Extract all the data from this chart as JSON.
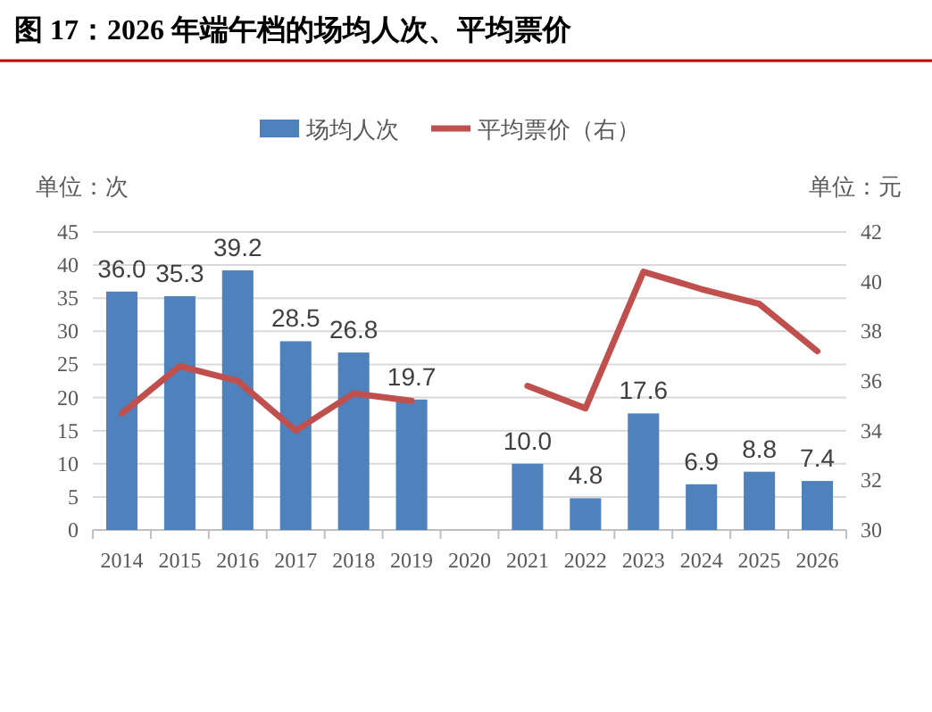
{
  "chart_data": {
    "type": "bar",
    "title": "图 17：2026 年端午档的场均人次、平均票价",
    "categories": [
      "2014",
      "2015",
      "2016",
      "2017",
      "2018",
      "2019",
      "2020",
      "2021",
      "2022",
      "2023",
      "2024",
      "2025",
      "2026"
    ],
    "series": [
      {
        "name": "场均人次",
        "color": "#4f81bd",
        "values": [
          36.0,
          35.3,
          39.2,
          28.5,
          26.8,
          19.7,
          null,
          10.0,
          4.8,
          17.6,
          6.9,
          8.8,
          7.4
        ],
        "value_labels": [
          "36.0",
          "35.3",
          "39.2",
          "28.5",
          "26.8",
          "19.7",
          null,
          "10.0",
          "4.8",
          "17.6",
          "6.9",
          "8.8",
          "7.4"
        ]
      },
      {
        "name": "平均票价（右）",
        "type": "line",
        "axis": "y2",
        "color": "#c0504d",
        "values": [
          34.7,
          36.6,
          36.0,
          34.0,
          35.5,
          35.2,
          null,
          35.8,
          34.9,
          40.4,
          39.7,
          39.1,
          37.2
        ]
      }
    ],
    "ylabel": "单位：次",
    "y2label": "单位：元",
    "ylim": [
      0,
      45
    ],
    "yticks": [
      0,
      5,
      10,
      15,
      20,
      25,
      30,
      35,
      40,
      45
    ],
    "y2lim": [
      30,
      42
    ],
    "y2ticks": [
      30,
      32,
      34,
      36,
      38,
      40,
      42
    ],
    "grid": "y",
    "legend": "top"
  }
}
